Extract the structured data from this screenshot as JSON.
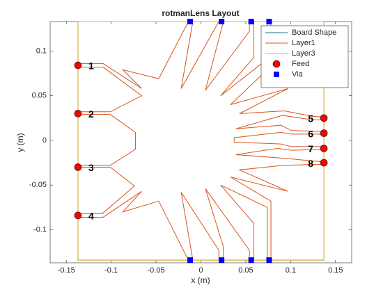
{
  "chart_data": {
    "type": "layout",
    "title": "rotmanLens Layout",
    "xlabel": "x (m)",
    "ylabel": "y (m)",
    "xlim": [
      -0.168,
      0.168
    ],
    "ylim": [
      -0.137,
      0.133
    ],
    "xticks": [
      -0.15,
      -0.1,
      -0.05,
      0,
      0.05,
      0.1,
      0.15
    ],
    "yticks": [
      -0.1,
      -0.05,
      0,
      0.05,
      0.1
    ],
    "legend": "northeast",
    "series": [
      {
        "name": "Board Shape",
        "kind": "line",
        "closed": true,
        "color": "#1f6e8c",
        "x": [
          -0.137,
          0.137,
          0.137,
          -0.137
        ],
        "y": [
          0.133,
          0.133,
          -0.134,
          -0.134
        ]
      },
      {
        "name": "Layer1",
        "kind": "line",
        "closed": true,
        "color": "#D95319",
        "x": [
          -0.137,
          -0.109,
          -0.066,
          -0.087,
          -0.047,
          -0.014,
          -0.009,
          -0.022,
          0.02,
          0.025,
          0.005,
          0.054,
          0.054,
          0.059,
          0.059,
          0.022,
          0.074,
          0.074,
          0.078,
          0.078,
          0.033,
          0.097,
          0.043,
          0.093,
          0.124,
          0.137,
          0.137,
          0.124,
          0.091,
          0.039,
          0.089,
          0.101,
          0.137,
          0.137,
          0.101,
          0.089,
          0.037,
          0.037,
          0.089,
          0.101,
          0.137,
          0.137,
          0.101,
          0.085,
          0.039,
          0.093,
          0.124,
          0.137,
          0.137,
          0.124,
          0.091,
          0.043,
          0.097,
          0.033,
          0.078,
          0.078,
          0.074,
          0.074,
          0.022,
          0.059,
          0.059,
          0.054,
          0.054,
          0.005,
          0.025,
          0.025,
          0.02,
          0.02,
          -0.022,
          -0.009,
          -0.014,
          -0.047,
          -0.087,
          -0.066,
          -0.109,
          -0.137,
          -0.137,
          -0.11,
          -0.074,
          -0.101,
          -0.137,
          -0.137,
          -0.101,
          -0.073,
          -0.073,
          -0.101,
          -0.137,
          -0.137,
          -0.101,
          -0.066,
          -0.109,
          -0.137
        ],
        "y": [
          0.086,
          0.086,
          0.058,
          0.079,
          0.069,
          0.133,
          0.133,
          0.058,
          0.133,
          0.133,
          0.056,
          0.122,
          0.133,
          0.133,
          0.093,
          0.05,
          0.091,
          0.133,
          0.133,
          0.083,
          0.04,
          0.058,
          0.03,
          0.033,
          0.027,
          0.026,
          0.023,
          0.023,
          0.028,
          0.013,
          0.017,
          0.011,
          0.01,
          0.007,
          0.007,
          0.009,
          0.003,
          -0.002,
          -0.004,
          -0.007,
          -0.007,
          -0.01,
          -0.011,
          -0.009,
          -0.016,
          -0.02,
          -0.023,
          -0.024,
          -0.027,
          -0.027,
          -0.028,
          -0.033,
          -0.057,
          -0.041,
          -0.068,
          -0.134,
          -0.134,
          -0.075,
          -0.05,
          -0.093,
          -0.134,
          -0.134,
          -0.123,
          -0.054,
          -0.119,
          -0.134,
          -0.134,
          -0.123,
          -0.058,
          -0.134,
          -0.134,
          -0.068,
          -0.08,
          -0.057,
          -0.086,
          -0.086,
          -0.082,
          -0.082,
          -0.051,
          -0.03,
          -0.03,
          -0.028,
          -0.028,
          -0.01,
          0.009,
          0.029,
          0.029,
          0.032,
          0.032,
          0.05,
          0.082,
          0.082
        ]
      },
      {
        "name": "Layer3",
        "kind": "line",
        "closed": true,
        "color": "#EDB120",
        "x": [
          -0.137,
          0.137,
          0.137,
          -0.137
        ],
        "y": [
          0.133,
          0.133,
          -0.134,
          -0.134
        ]
      },
      {
        "name": "Feed",
        "kind": "marker",
        "marker": "circle",
        "color": "#FF0000",
        "x": [
          -0.137,
          -0.137,
          -0.137,
          -0.137,
          0.137,
          0.137,
          0.137,
          0.137
        ],
        "y": [
          0.084,
          0.03,
          -0.03,
          -0.084,
          0.025,
          0.008,
          -0.009,
          -0.025
        ],
        "labels": [
          "1",
          "2",
          "3",
          "4",
          "5",
          "6",
          "7",
          "8"
        ]
      },
      {
        "name": "Via",
        "kind": "marker",
        "marker": "square",
        "color": "#0000FF",
        "x": [
          -0.012,
          0.023,
          0.056,
          0.076,
          -0.012,
          0.023,
          0.056,
          0.076
        ],
        "y": [
          0.133,
          0.133,
          0.133,
          0.133,
          -0.134,
          -0.134,
          -0.134,
          -0.134
        ]
      }
    ]
  }
}
